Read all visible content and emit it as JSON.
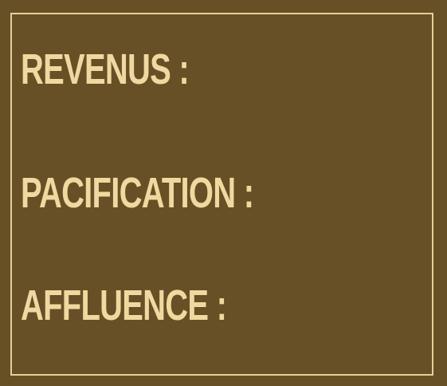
{
  "stats": {
    "revenus_label": "REVENUS :",
    "pacification_label": "PACIFICATION :",
    "affluence_label": "AFFLUENCE :"
  },
  "colors": {
    "background": "#674f26",
    "border": "#e7cf98",
    "text": "#f0d9a0"
  }
}
